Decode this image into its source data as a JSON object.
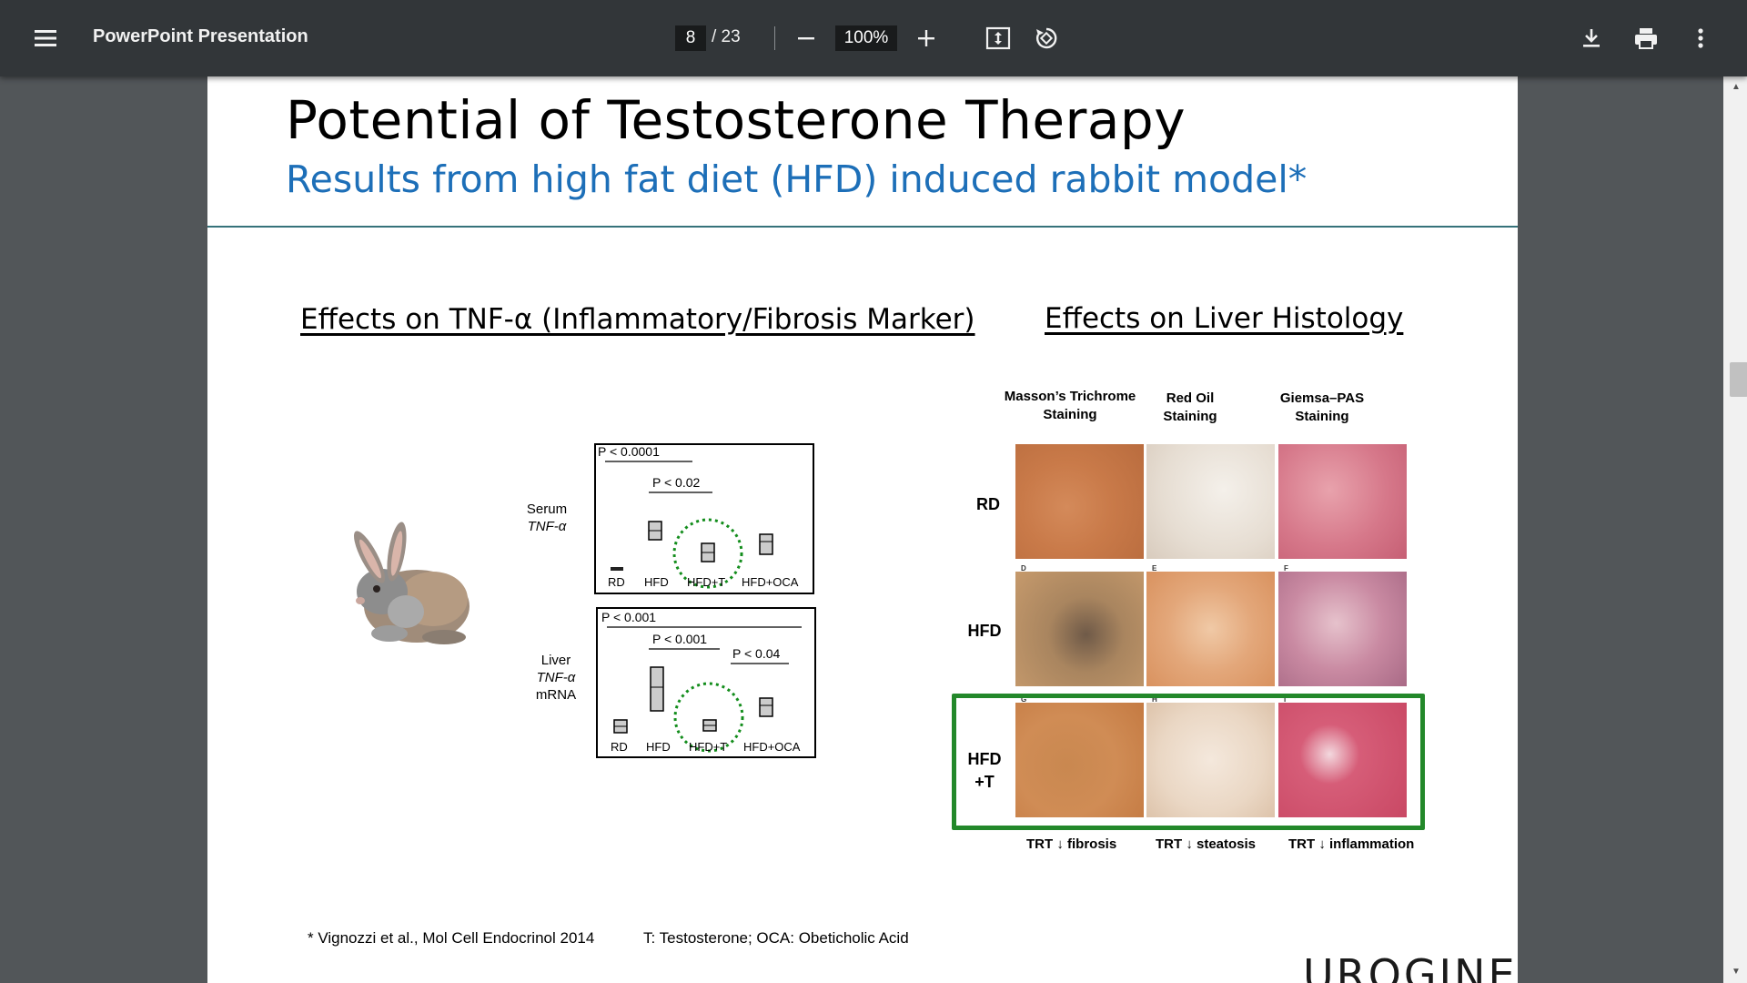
{
  "toolbar": {
    "title": "PowerPoint Presentation",
    "page_current": "8",
    "page_total": "/ 23",
    "zoom": "100%"
  },
  "slide": {
    "title": "Potential of Testosterone Therapy",
    "subtitle": "Results from high fat diet (HFD) induced rabbit model*",
    "left_heading": "Effects on TNF-α (Inflammatory/Fibrosis Marker)",
    "right_heading": "Effects on Liver Histology",
    "serum_label": "Serum",
    "serum_label2": "TNF-α",
    "liver_label": "Liver",
    "liver_label2": "TNF-α",
    "liver_label3": "mRNA",
    "serum_chart": {
      "p1": "P < 0.0001",
      "p2": "P < 0.02",
      "groups": [
        "RD",
        "HFD",
        "HFD+T",
        "HFD+OCA"
      ]
    },
    "liver_chart": {
      "p1": "P < 0.001",
      "p2": "P < 0.001",
      "p3": "P < 0.04",
      "groups": [
        "RD",
        "HFD",
        "HFD+T",
        "HFD+OCA"
      ]
    },
    "histology": {
      "columns": [
        "Masson’s Trichrome",
        "Staining",
        "Red Oil",
        "Staining",
        "Giemsa–PAS",
        "Staining"
      ],
      "rows": [
        "RD",
        "HFD",
        "HFD",
        "+T"
      ],
      "panel_letters": [
        "D",
        "E",
        "F",
        "G",
        "H",
        "I"
      ],
      "outcomes": [
        "TRT ↓ fibrosis",
        "TRT ↓ steatosis",
        "TRT ↓ inflammation"
      ]
    },
    "footnote_ref": "* Vignozzi et al., Mol Cell Endocrinol 2014",
    "footnote_abbr": "T: Testosterone; OCA: Obeticholic Acid",
    "logo": "UROGINE"
  },
  "colors": {
    "toolbar": "#323639",
    "viewer_bg": "#525659",
    "subtitle": "#1d6fb8",
    "highlight_box": "#23882a"
  }
}
